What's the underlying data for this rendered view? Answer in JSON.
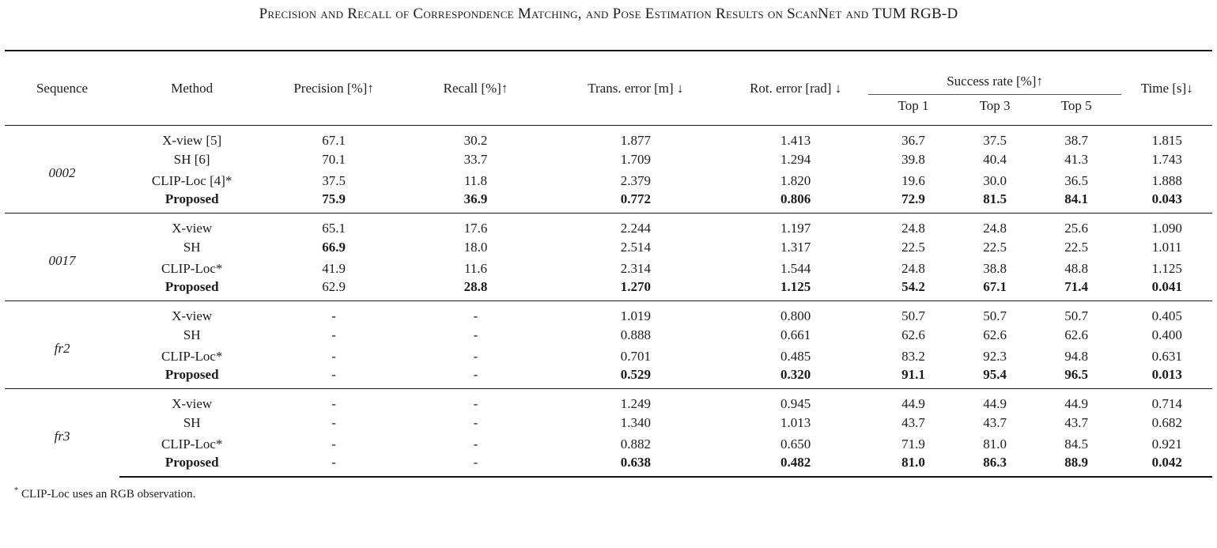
{
  "title": "Precision and Recall of Correspondence Matching, and Pose Estimation Results on ScanNet and TUM RGB-D",
  "header": {
    "sequence": "Sequence",
    "method": "Method",
    "precision": "Precision [%]↑",
    "recall": "Recall [%]↑",
    "trans_error": "Trans. error [m] ↓",
    "rot_error": "Rot. error [rad] ↓",
    "success_rate": "Success rate [%]↑",
    "top1": "Top 1",
    "top3": "Top 3",
    "top5": "Top 5",
    "time": "Time [s]↓"
  },
  "blocks": [
    {
      "sequence": "0002",
      "rows": [
        {
          "method": "X-view [5]",
          "precision": "67.1",
          "recall": "30.2",
          "trans": "1.877",
          "rot": "1.413",
          "top1": "36.7",
          "top3": "37.5",
          "top5": "38.7",
          "time": "1.815"
        },
        {
          "method": "SH [6]",
          "precision": "70.1",
          "recall": "33.7",
          "trans": "1.709",
          "rot": "1.294",
          "top1": "39.8",
          "top3": "40.4",
          "top5": "41.3",
          "time": "1.743"
        },
        {
          "method": "CLIP-Loc [4]*",
          "precision": "37.5",
          "recall": "11.8",
          "trans": "2.379",
          "rot": "1.820",
          "top1": "19.6",
          "top3": "30.0",
          "top5": "36.5",
          "time": "1.888"
        },
        {
          "method": "Proposed",
          "precision": "75.9",
          "recall": "36.9",
          "trans": "0.772",
          "rot": "0.806",
          "top1": "72.9",
          "top3": "81.5",
          "top5": "84.1",
          "time": "0.043"
        }
      ]
    },
    {
      "sequence": "0017",
      "rows": [
        {
          "method": "X-view",
          "precision": "65.1",
          "recall": "17.6",
          "trans": "2.244",
          "rot": "1.197",
          "top1": "24.8",
          "top3": "24.8",
          "top5": "25.6",
          "time": "1.090"
        },
        {
          "method": "SH",
          "precision": "66.9",
          "recall": "18.0",
          "trans": "2.514",
          "rot": "1.317",
          "top1": "22.5",
          "top3": "22.5",
          "top5": "22.5",
          "time": "1.011"
        },
        {
          "method": "CLIP-Loc*",
          "precision": "41.9",
          "recall": "11.6",
          "trans": "2.314",
          "rot": "1.544",
          "top1": "24.8",
          "top3": "38.8",
          "top5": "48.8",
          "time": "1.125"
        },
        {
          "method": "Proposed",
          "precision": "62.9",
          "recall": "28.8",
          "trans": "1.270",
          "rot": "1.125",
          "top1": "54.2",
          "top3": "67.1",
          "top5": "71.4",
          "time": "0.041"
        }
      ]
    },
    {
      "sequence": "fr2",
      "rows": [
        {
          "method": "X-view",
          "precision": "-",
          "recall": "-",
          "trans": "1.019",
          "rot": "0.800",
          "top1": "50.7",
          "top3": "50.7",
          "top5": "50.7",
          "time": "0.405"
        },
        {
          "method": "SH",
          "precision": "-",
          "recall": "-",
          "trans": "0.888",
          "rot": "0.661",
          "top1": "62.6",
          "top3": "62.6",
          "top5": "62.6",
          "time": "0.400"
        },
        {
          "method": "CLIP-Loc*",
          "precision": "-",
          "recall": "-",
          "trans": "0.701",
          "rot": "0.485",
          "top1": "83.2",
          "top3": "92.3",
          "top5": "94.8",
          "time": "0.631"
        },
        {
          "method": "Proposed",
          "precision": "-",
          "recall": "-",
          "trans": "0.529",
          "rot": "0.320",
          "top1": "91.1",
          "top3": "95.4",
          "top5": "96.5",
          "time": "0.013"
        }
      ]
    },
    {
      "sequence": "fr3",
      "rows": [
        {
          "method": "X-view",
          "precision": "-",
          "recall": "-",
          "trans": "1.249",
          "rot": "0.945",
          "top1": "44.9",
          "top3": "44.9",
          "top5": "44.9",
          "time": "0.714"
        },
        {
          "method": "SH",
          "precision": "-",
          "recall": "-",
          "trans": "1.340",
          "rot": "1.013",
          "top1": "43.7",
          "top3": "43.7",
          "top5": "43.7",
          "time": "0.682"
        },
        {
          "method": "CLIP-Loc*",
          "precision": "-",
          "recall": "-",
          "trans": "0.882",
          "rot": "0.650",
          "top1": "71.9",
          "top3": "81.0",
          "top5": "84.5",
          "time": "0.921"
        },
        {
          "method": "Proposed",
          "precision": "-",
          "recall": "-",
          "trans": "0.638",
          "rot": "0.482",
          "top1": "81.0",
          "top3": "86.3",
          "top5": "88.9",
          "time": "0.042"
        }
      ]
    }
  ],
  "footnote": {
    "marker": "*",
    "text": "CLIP-Loc uses an RGB observation."
  },
  "colors": {
    "text": "#1c1c1c",
    "rule": "#141414",
    "background": "#ffffff"
  }
}
